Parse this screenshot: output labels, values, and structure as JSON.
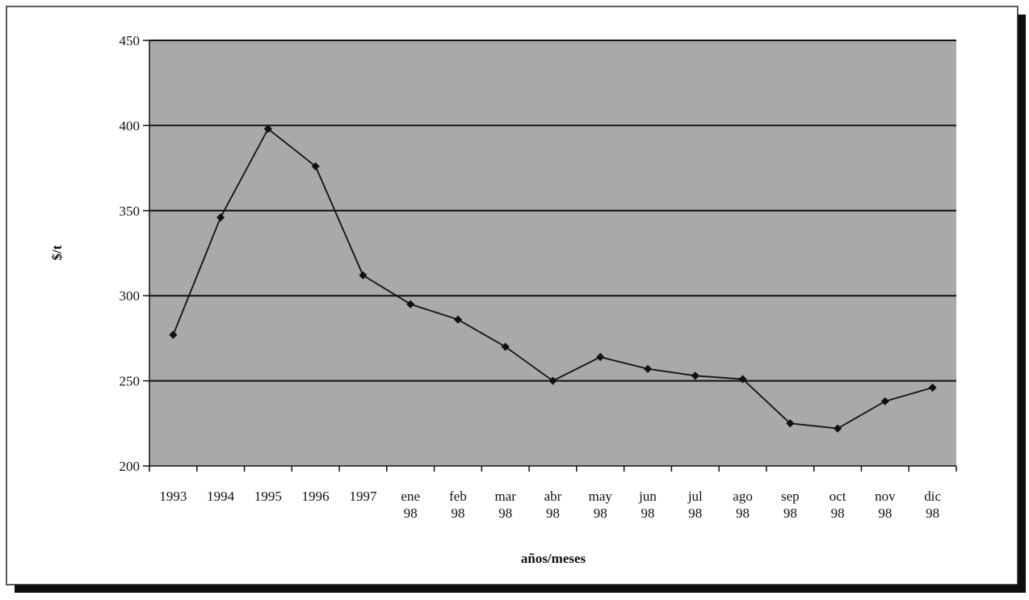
{
  "colors": {
    "plot_background": "#a7a9ab",
    "gridline": "#111111",
    "line": "#111111",
    "frame_shadow": "#0d0d0d"
  },
  "chart_data": {
    "type": "line",
    "title": "",
    "xlabel": "años/meses",
    "ylabel": "$/t",
    "ylim": [
      200,
      450
    ],
    "yticks": [
      200,
      250,
      300,
      350,
      400,
      450
    ],
    "grid": true,
    "categories": [
      [
        "1993"
      ],
      [
        "1994"
      ],
      [
        "1995"
      ],
      [
        "1996"
      ],
      [
        "1997"
      ],
      [
        "ene",
        "98"
      ],
      [
        "feb",
        "98"
      ],
      [
        "mar",
        "98"
      ],
      [
        "abr",
        "98"
      ],
      [
        "may",
        "98"
      ],
      [
        "jun",
        "98"
      ],
      [
        "jul",
        "98"
      ],
      [
        "ago",
        "98"
      ],
      [
        "sep",
        "98"
      ],
      [
        "oct",
        "98"
      ],
      [
        "nov",
        "98"
      ],
      [
        "dic",
        "98"
      ]
    ],
    "series": [
      {
        "values": [
          277,
          346,
          398,
          376,
          312,
          295,
          286,
          270,
          250,
          264,
          257,
          253,
          251,
          225,
          222,
          238,
          246
        ]
      }
    ]
  }
}
